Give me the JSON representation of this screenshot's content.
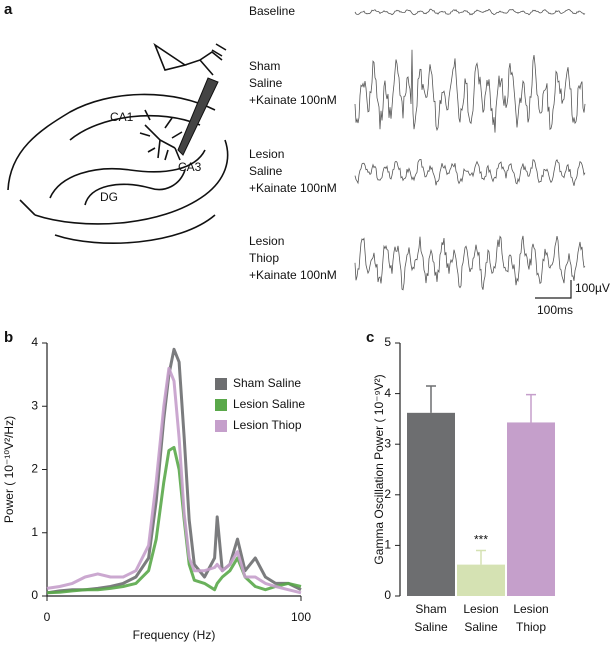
{
  "panel_labels": [
    "a",
    "b",
    "c"
  ],
  "panel_a": {
    "diagram_labels": [
      "CA1",
      "CA3",
      "DG"
    ],
    "conditions": [
      [
        "Baseline"
      ],
      [
        "Sham",
        "Saline",
        "+Kainate 100nM"
      ],
      [
        "Lesion",
        "Saline",
        "+Kainate 100nM"
      ],
      [
        "Lesion",
        "Thiop",
        "+Kainate 100nM"
      ]
    ],
    "scale_bar": [
      "100µV",
      "100ms"
    ]
  },
  "chart_data": [
    {
      "type": "line",
      "xlabel": "Frequency (Hz)",
      "ylabel": "Power ( 10⁻¹⁰V²/Hz)",
      "x": [
        0,
        5,
        10,
        15,
        20,
        25,
        30,
        35,
        40,
        43,
        46,
        48,
        50,
        52,
        54,
        56,
        58,
        62,
        66,
        67,
        69,
        72,
        75,
        78,
        82,
        86,
        90,
        95,
        100
      ],
      "series": [
        {
          "name": "Sham Saline",
          "color": "#6d6e70",
          "values": [
            0.05,
            0.08,
            0.1,
            0.1,
            0.12,
            0.15,
            0.2,
            0.3,
            0.6,
            1.5,
            2.8,
            3.5,
            3.9,
            3.7,
            2.5,
            1.2,
            0.5,
            0.3,
            0.6,
            1.25,
            0.4,
            0.5,
            0.9,
            0.4,
            0.6,
            0.3,
            0.2,
            0.2,
            0.1
          ]
        },
        {
          "name": "Lesion Saline",
          "color": "#5aa84a",
          "values": [
            0.05,
            0.06,
            0.08,
            0.1,
            0.1,
            0.12,
            0.15,
            0.2,
            0.4,
            0.9,
            1.8,
            2.3,
            2.35,
            2.0,
            1.2,
            0.5,
            0.25,
            0.2,
            0.1,
            0.2,
            0.3,
            0.4,
            0.6,
            0.3,
            0.15,
            0.1,
            0.15,
            0.2,
            0.15
          ]
        },
        {
          "name": "Lesion Thiop",
          "color": "#c59fcb",
          "values": [
            0.12,
            0.15,
            0.2,
            0.3,
            0.35,
            0.3,
            0.3,
            0.4,
            0.8,
            1.8,
            3.0,
            3.6,
            3.4,
            2.5,
            1.3,
            0.6,
            0.4,
            0.4,
            0.45,
            0.5,
            0.4,
            0.5,
            0.7,
            0.3,
            0.3,
            0.2,
            0.15,
            0.1,
            0.05
          ]
        }
      ],
      "xlim": [
        0,
        100
      ],
      "xticks": [
        0,
        100
      ],
      "ylim": [
        0,
        4
      ],
      "yticks": [
        0,
        1,
        2,
        3,
        4
      ],
      "legend": "upper right"
    },
    {
      "type": "bar",
      "ylabel": "Gamma Oscillation Power ( 10⁻⁹V²)",
      "categories": [
        [
          "Sham",
          "Saline"
        ],
        [
          "Lesion",
          "Saline"
        ],
        [
          "Lesion",
          "Thiop"
        ]
      ],
      "values": [
        3.62,
        0.62,
        3.43
      ],
      "errors": [
        0.53,
        0.28,
        0.55
      ],
      "colors": [
        "#6d6e70",
        "#d5e2b3",
        "#c59fcb"
      ],
      "annotation": "***",
      "annotation_color": "#d5e2b3",
      "ylim": [
        0,
        5
      ],
      "yticks": [
        0,
        1,
        2,
        3,
        4,
        5
      ]
    }
  ]
}
